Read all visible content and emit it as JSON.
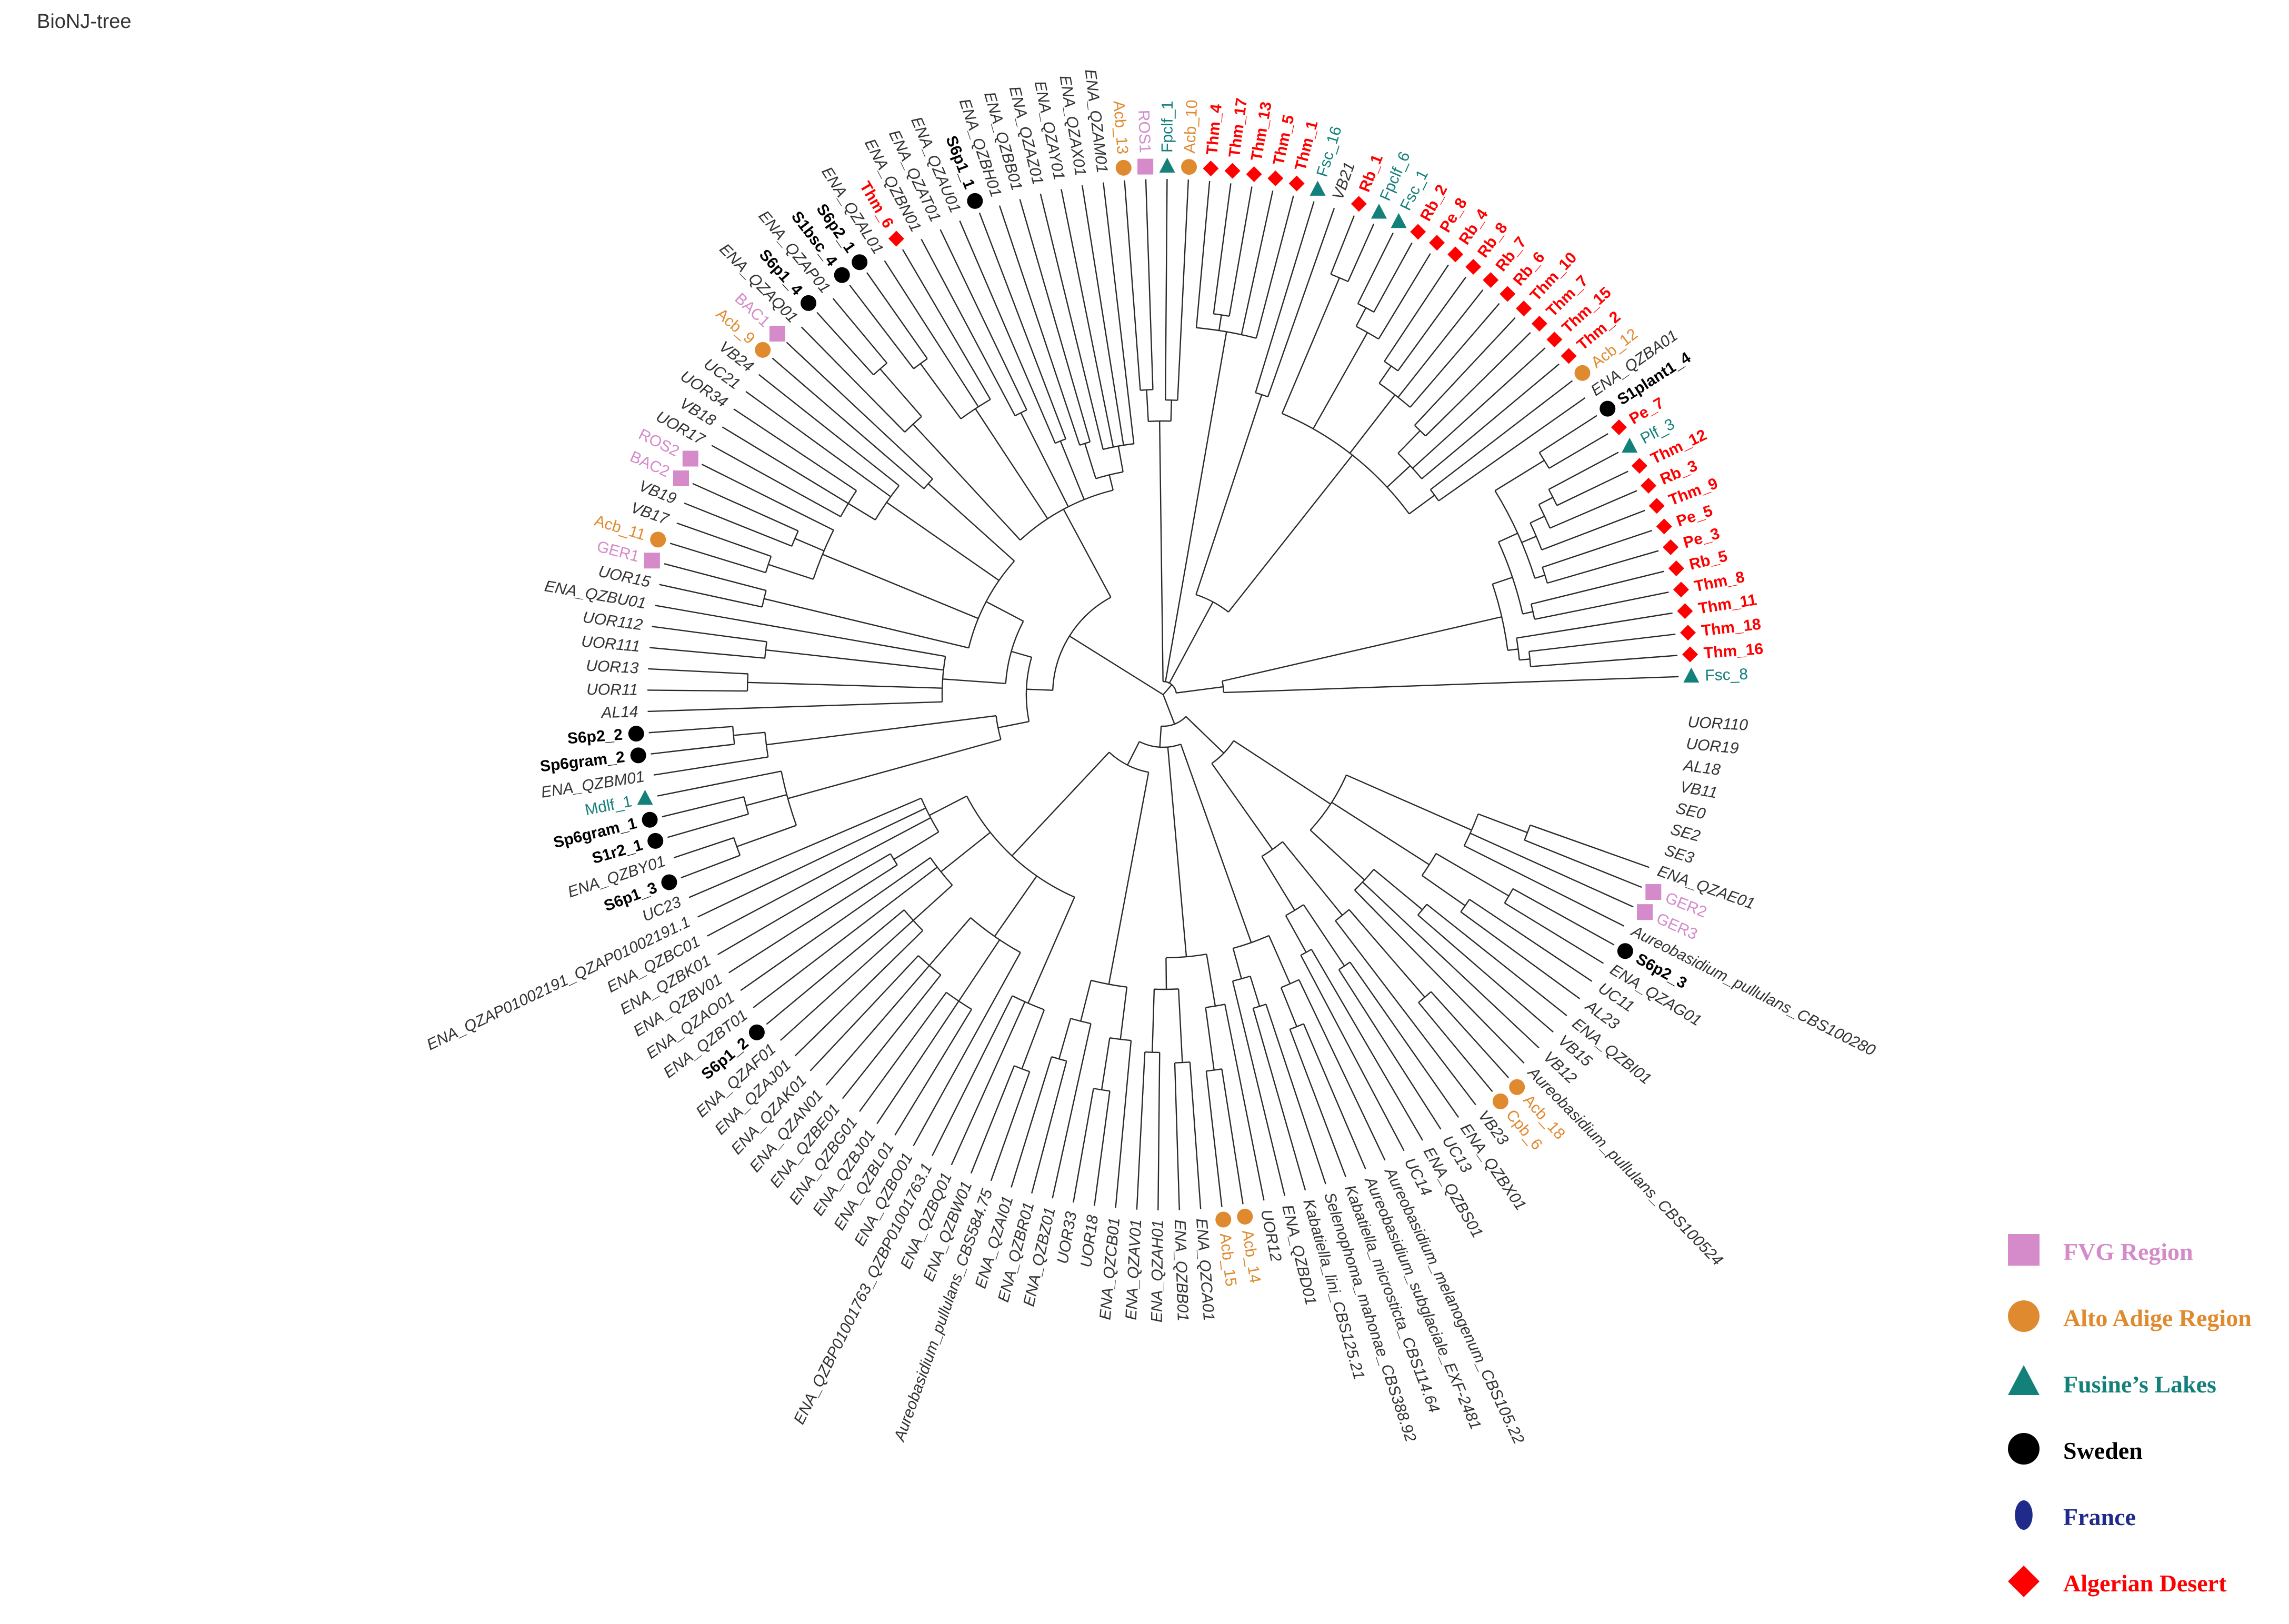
{
  "title": "BioNJ-tree",
  "colors": {
    "branch": "#2a2a2a",
    "FVG": "#d58ac9",
    "AltoAdige": "#e08a30",
    "Fusine": "#14807a",
    "Sweden": "#000000",
    "France": "#1f2a8a",
    "Algeria": "#ff0000",
    "plain": "#333333"
  },
  "legend": [
    {
      "label": "FVG Region",
      "group": "FVG",
      "shape": "square"
    },
    {
      "label": "Alto Adige Region",
      "group": "AltoAdige",
      "shape": "circle"
    },
    {
      "label": "Fusine’s Lakes",
      "group": "Fusine",
      "shape": "triangle"
    },
    {
      "label": "Sweden",
      "group": "Sweden",
      "shape": "circle"
    },
    {
      "label": "France",
      "group": "France",
      "shape": "ellipse"
    },
    {
      "label": "Algerian Desert",
      "group": "Algeria",
      "shape": "diamond"
    }
  ],
  "leaves": [
    {
      "name": "Fsc_8",
      "g": "Fusine"
    },
    {
      "name": "Thm_16",
      "g": "Algeria"
    },
    {
      "name": "Thm_18",
      "g": "Algeria"
    },
    {
      "name": "Thm_11",
      "g": "Algeria"
    },
    {
      "name": "Thm_8",
      "g": "Algeria"
    },
    {
      "name": "Rb_5",
      "g": "Algeria"
    },
    {
      "name": "Pe_3",
      "g": "Algeria"
    },
    {
      "name": "Pe_5",
      "g": "Algeria"
    },
    {
      "name": "Thm_9",
      "g": "Algeria"
    },
    {
      "name": "Rb_3",
      "g": "Algeria"
    },
    {
      "name": "Thm_12",
      "g": "Algeria"
    },
    {
      "name": "Plf_3",
      "g": "Fusine"
    },
    {
      "name": "Pe_7",
      "g": "Algeria"
    },
    {
      "name": "S1plant1_4",
      "g": "Sweden"
    },
    {
      "name": "ENA_QZBA01",
      "g": ""
    },
    {
      "name": "Acb_12",
      "g": "AltoAdige"
    },
    {
      "name": "Thm_2",
      "g": "Algeria"
    },
    {
      "name": "Thm_15",
      "g": "Algeria"
    },
    {
      "name": "Thm_7",
      "g": "Algeria"
    },
    {
      "name": "Thm_10",
      "g": "Algeria"
    },
    {
      "name": "Rb_6",
      "g": "Algeria"
    },
    {
      "name": "Rb_7",
      "g": "Algeria"
    },
    {
      "name": "Rb_8",
      "g": "Algeria"
    },
    {
      "name": "Rb_4",
      "g": "Algeria"
    },
    {
      "name": "Pe_8",
      "g": "Algeria"
    },
    {
      "name": "Rb_2",
      "g": "Algeria"
    },
    {
      "name": "Fsc_1",
      "g": "Fusine"
    },
    {
      "name": "Fpclf_6",
      "g": "Fusine"
    },
    {
      "name": "Rb_1",
      "g": "Algeria"
    },
    {
      "name": "VB21",
      "g": ""
    },
    {
      "name": "Fsc_16",
      "g": "Fusine"
    },
    {
      "name": "Thm_1",
      "g": "Algeria"
    },
    {
      "name": "Thm_5",
      "g": "Algeria"
    },
    {
      "name": "Thm_13",
      "g": "Algeria"
    },
    {
      "name": "Thm_17",
      "g": "Algeria"
    },
    {
      "name": "Thm_4",
      "g": "Algeria"
    },
    {
      "name": "Acb_10",
      "g": "AltoAdige"
    },
    {
      "name": "Fpclf_1",
      "g": "Fusine"
    },
    {
      "name": "ROS1",
      "g": "FVG"
    },
    {
      "name": "Acb_13",
      "g": "AltoAdige"
    },
    {
      "name": "ENA_QZAM01",
      "g": ""
    },
    {
      "name": "ENA_QZAX01",
      "g": ""
    },
    {
      "name": "ENA_QZAY01",
      "g": ""
    },
    {
      "name": "ENA_QZAZ01",
      "g": ""
    },
    {
      "name": "ENA_QZBB01",
      "g": ""
    },
    {
      "name": "ENA_QZBH01",
      "g": ""
    },
    {
      "name": "S6p1_1",
      "g": "Sweden"
    },
    {
      "name": "ENA_QZAU01",
      "g": ""
    },
    {
      "name": "ENA_QZAT01",
      "g": ""
    },
    {
      "name": "ENA_QZBN01",
      "g": ""
    },
    {
      "name": "Thm_6",
      "g": "Algeria"
    },
    {
      "name": "ENA_QZAL01",
      "g": ""
    },
    {
      "name": "S6p2_1",
      "g": "Sweden"
    },
    {
      "name": "S1bsc_4",
      "g": "Sweden"
    },
    {
      "name": "ENA_QZAP01",
      "g": ""
    },
    {
      "name": "S6p1_4",
      "g": "Sweden"
    },
    {
      "name": "ENA_QZAQ01",
      "g": ""
    },
    {
      "name": "BAC1",
      "g": "FVG"
    },
    {
      "name": "Acb_9",
      "g": "AltoAdige"
    },
    {
      "name": "VB24",
      "g": ""
    },
    {
      "name": "UC21",
      "g": ""
    },
    {
      "name": "UOR34",
      "g": ""
    },
    {
      "name": "VB18",
      "g": ""
    },
    {
      "name": "UOR17",
      "g": ""
    },
    {
      "name": "ROS2",
      "g": "FVG"
    },
    {
      "name": "BAC2",
      "g": "FVG"
    },
    {
      "name": "VB19",
      "g": ""
    },
    {
      "name": "VB17",
      "g": ""
    },
    {
      "name": "Acb_11",
      "g": "AltoAdige"
    },
    {
      "name": "GER1",
      "g": "FVG"
    },
    {
      "name": "UOR15",
      "g": ""
    },
    {
      "name": "ENA_QZBU01",
      "g": ""
    },
    {
      "name": "UOR112",
      "g": ""
    },
    {
      "name": "UOR111",
      "g": ""
    },
    {
      "name": "UOR13",
      "g": ""
    },
    {
      "name": "UOR11",
      "g": ""
    },
    {
      "name": "AL14",
      "g": ""
    },
    {
      "name": "S6p2_2",
      "g": "Sweden"
    },
    {
      "name": "Sp6gram_2",
      "g": "Sweden"
    },
    {
      "name": "ENA_QZBM01",
      "g": ""
    },
    {
      "name": "Mdlf_1",
      "g": "Fusine"
    },
    {
      "name": "Sp6gram_1",
      "g": "Sweden"
    },
    {
      "name": "S1r2_1",
      "g": "Sweden"
    },
    {
      "name": "ENA_QZBY01",
      "g": ""
    },
    {
      "name": "S6p1_3",
      "g": "Sweden"
    },
    {
      "name": "UC23",
      "g": ""
    },
    {
      "name": "ENA_QZAP01002191_QZAP01002191.1",
      "g": ""
    },
    {
      "name": "ENA_QZBC01",
      "g": ""
    },
    {
      "name": "ENA_QZBK01",
      "g": ""
    },
    {
      "name": "ENA_QZBV01",
      "g": ""
    },
    {
      "name": "ENA_QZAO01",
      "g": ""
    },
    {
      "name": "ENA_QZBT01",
      "g": ""
    },
    {
      "name": "S6p1_2",
      "g": "Sweden"
    },
    {
      "name": "ENA_QZAF01",
      "g": ""
    },
    {
      "name": "ENA_QZAJ01",
      "g": ""
    },
    {
      "name": "ENA_QZAK01",
      "g": ""
    },
    {
      "name": "ENA_QZAN01",
      "g": ""
    },
    {
      "name": "ENA_QZBE01",
      "g": ""
    },
    {
      "name": "ENA_QZBG01",
      "g": ""
    },
    {
      "name": "ENA_QZBJ01",
      "g": ""
    },
    {
      "name": "ENA_QZBL01",
      "g": ""
    },
    {
      "name": "ENA_QZBO01",
      "g": ""
    },
    {
      "name": "ENA_QZBP01001763_QZBP01001763.1",
      "g": ""
    },
    {
      "name": "ENA_QZBQ01",
      "g": ""
    },
    {
      "name": "ENA_QZBW01",
      "g": ""
    },
    {
      "name": "Aureobasidium_pullulans_CBS584.75",
      "g": ""
    },
    {
      "name": "ENA_QZAI01",
      "g": ""
    },
    {
      "name": "ENA_QZBR01",
      "g": ""
    },
    {
      "name": "ENA_QZBZ01",
      "g": ""
    },
    {
      "name": "UOR33",
      "g": ""
    },
    {
      "name": "UOR18",
      "g": ""
    },
    {
      "name": "ENA_QZCB01",
      "g": ""
    },
    {
      "name": "ENA_QZAV01",
      "g": ""
    },
    {
      "name": "ENA_QZAH01",
      "g": ""
    },
    {
      "name": "ENA_QZBB01",
      "g": ""
    },
    {
      "name": "ENA_QZCA01",
      "g": ""
    },
    {
      "name": "Acb_15",
      "g": "AltoAdige"
    },
    {
      "name": "Acb_14",
      "g": "AltoAdige"
    },
    {
      "name": "UOR12",
      "g": ""
    },
    {
      "name": "ENA_QZBD01",
      "g": ""
    },
    {
      "name": "Kabatiella_lini_CBS125.21",
      "g": ""
    },
    {
      "name": "Selenophoma_mahonae_CBS388.92",
      "g": ""
    },
    {
      "name": "Kabatiella_microsticta_CBS114.64",
      "g": ""
    },
    {
      "name": "Aureobasidium_subglaciale_EXF-2481",
      "g": ""
    },
    {
      "name": "Aureobasidium_melanogenum_CBS105.22",
      "g": ""
    },
    {
      "name": "UC14",
      "g": ""
    },
    {
      "name": "ENA_QZBS01",
      "g": ""
    },
    {
      "name": "UC13",
      "g": ""
    },
    {
      "name": "ENA_QZBX01",
      "g": ""
    },
    {
      "name": "VB23",
      "g": ""
    },
    {
      "name": "Cpb_6",
      "g": "AltoAdige"
    },
    {
      "name": "Acb_18",
      "g": "AltoAdige"
    },
    {
      "name": "Aureobasidium_pullulans_CBS100524",
      "g": ""
    },
    {
      "name": "VB12",
      "g": ""
    },
    {
      "name": "VB15",
      "g": ""
    },
    {
      "name": "ENA_QZBI01",
      "g": ""
    },
    {
      "name": "AL23",
      "g": ""
    },
    {
      "name": "UC11",
      "g": ""
    },
    {
      "name": "ENA_QZAG01",
      "g": ""
    },
    {
      "name": "S6p2_3",
      "g": "Sweden"
    },
    {
      "name": "Aureobasidium_pullulans_CBS100280",
      "g": ""
    },
    {
      "name": "GER3",
      "g": "FVG"
    },
    {
      "name": "GER2",
      "g": "FVG"
    },
    {
      "name": "ENA_QZAE01",
      "g": ""
    },
    {
      "name": "SE3",
      "g": ""
    },
    {
      "name": "SE2",
      "g": ""
    },
    {
      "name": "SE0",
      "g": ""
    },
    {
      "name": "VB11",
      "g": ""
    },
    {
      "name": "AL18",
      "g": ""
    },
    {
      "name": "UOR19",
      "g": ""
    },
    {
      "name": "UOR110",
      "g": ""
    }
  ]
}
